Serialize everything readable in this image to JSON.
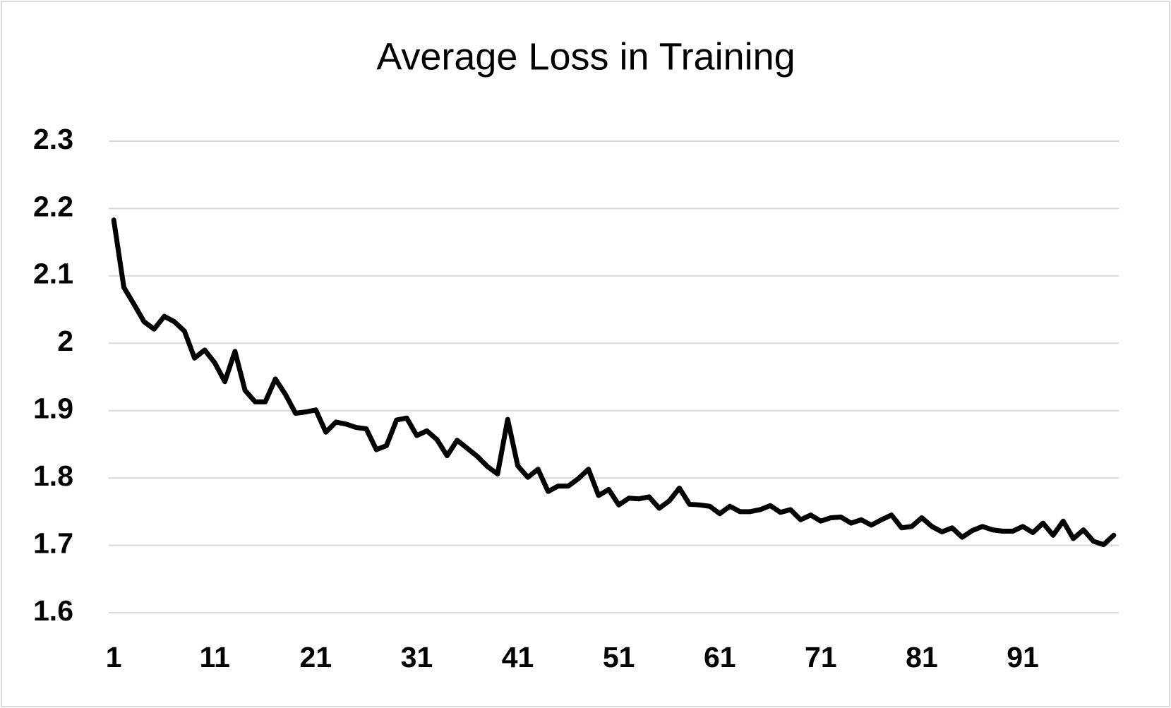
{
  "chart_data": {
    "type": "line",
    "title": "Average Loss in Training",
    "categories": [
      "1",
      null,
      null,
      null,
      null,
      null,
      null,
      null,
      null,
      null,
      "11",
      null,
      null,
      null,
      null,
      null,
      null,
      null,
      null,
      null,
      "21",
      null,
      null,
      null,
      null,
      null,
      null,
      null,
      null,
      null,
      "31",
      null,
      null,
      null,
      null,
      null,
      null,
      null,
      null,
      null,
      "41",
      null,
      null,
      null,
      null,
      null,
      null,
      null,
      null,
      null,
      "51",
      null,
      null,
      null,
      null,
      null,
      null,
      null,
      null,
      null,
      "61",
      null,
      null,
      null,
      null,
      null,
      null,
      null,
      null,
      null,
      "71",
      null,
      null,
      null,
      null,
      null,
      null,
      null,
      null,
      null,
      "81",
      null,
      null,
      null,
      null,
      null,
      null,
      null,
      null,
      null,
      "91",
      null,
      null,
      null,
      null,
      null,
      null,
      null,
      null,
      null
    ],
    "series": [
      {
        "color": "#000000",
        "values": [
          2.183,
          2.083,
          2.058,
          2.032,
          2.021,
          2.04,
          2.032,
          2.018,
          1.978,
          1.99,
          1.971,
          1.943,
          1.988,
          1.93,
          1.913,
          1.913,
          1.947,
          1.924,
          1.896,
          1.898,
          1.901,
          1.868,
          1.883,
          1.88,
          1.875,
          1.873,
          1.842,
          1.848,
          1.886,
          1.889,
          1.863,
          1.87,
          1.857,
          1.833,
          1.856,
          1.844,
          1.832,
          1.817,
          1.806,
          1.887,
          1.818,
          1.801,
          1.813,
          1.78,
          1.788,
          1.788,
          1.799,
          1.813,
          1.774,
          1.783,
          1.76,
          1.77,
          1.769,
          1.772,
          1.755,
          1.766,
          1.785,
          1.761,
          1.76,
          1.758,
          1.747,
          1.758,
          1.75,
          1.75,
          1.753,
          1.759,
          1.749,
          1.753,
          1.738,
          1.745,
          1.736,
          1.741,
          1.742,
          1.733,
          1.738,
          1.73,
          1.738,
          1.745,
          1.726,
          1.728,
          1.741,
          1.728,
          1.72,
          1.726,
          1.712,
          1.722,
          1.728,
          1.723,
          1.721,
          1.721,
          1.728,
          1.719,
          1.733,
          1.715,
          1.736,
          1.71,
          1.723,
          1.706,
          1.701,
          1.715
        ]
      }
    ],
    "ylim": [
      1.6,
      2.3
    ],
    "yticks": [
      1.6,
      1.7,
      1.8,
      1.9,
      2,
      2.1,
      2.2,
      2.3
    ],
    "grid": true
  }
}
